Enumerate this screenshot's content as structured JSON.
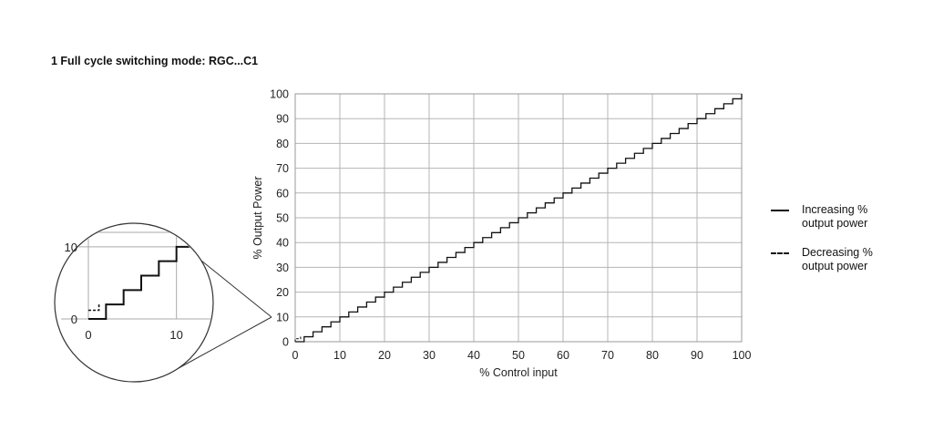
{
  "chart_data": {
    "type": "line",
    "title": "1 Full cycle switching mode: RGC...C1",
    "xlabel": "% Control input",
    "ylabel": "% Output Power",
    "xlim": [
      0,
      100
    ],
    "ylim": [
      0,
      100
    ],
    "x_ticks": [
      "0",
      "10",
      "20",
      "30",
      "40",
      "50",
      "60",
      "70",
      "80",
      "90",
      "100"
    ],
    "y_ticks": [
      "0",
      "10",
      "20",
      "30",
      "40",
      "50",
      "60",
      "70",
      "80",
      "90",
      "100"
    ],
    "grid": true,
    "legend_position": "right",
    "step_size_percent": 2,
    "series": [
      {
        "name": "Increasing % output power",
        "style": "solid",
        "description_points": {
          "x": [
            0,
            100
          ],
          "y": [
            0,
            100
          ]
        }
      },
      {
        "name": "Decreasing % output power",
        "style": "dashed",
        "description_points": {
          "x": [
            0,
            100
          ],
          "y": [
            0,
            100
          ]
        }
      }
    ],
    "legend": {
      "increasing": [
        "Increasing %",
        "output power"
      ],
      "decreasing": [
        "Decreasing %",
        "output power"
      ]
    },
    "inset": {
      "type": "zoom",
      "xlim": [
        0,
        12
      ],
      "ylim": [
        0,
        12
      ],
      "x_ticks": [
        "0",
        "10"
      ],
      "y_ticks": [
        "0",
        "10"
      ]
    }
  }
}
